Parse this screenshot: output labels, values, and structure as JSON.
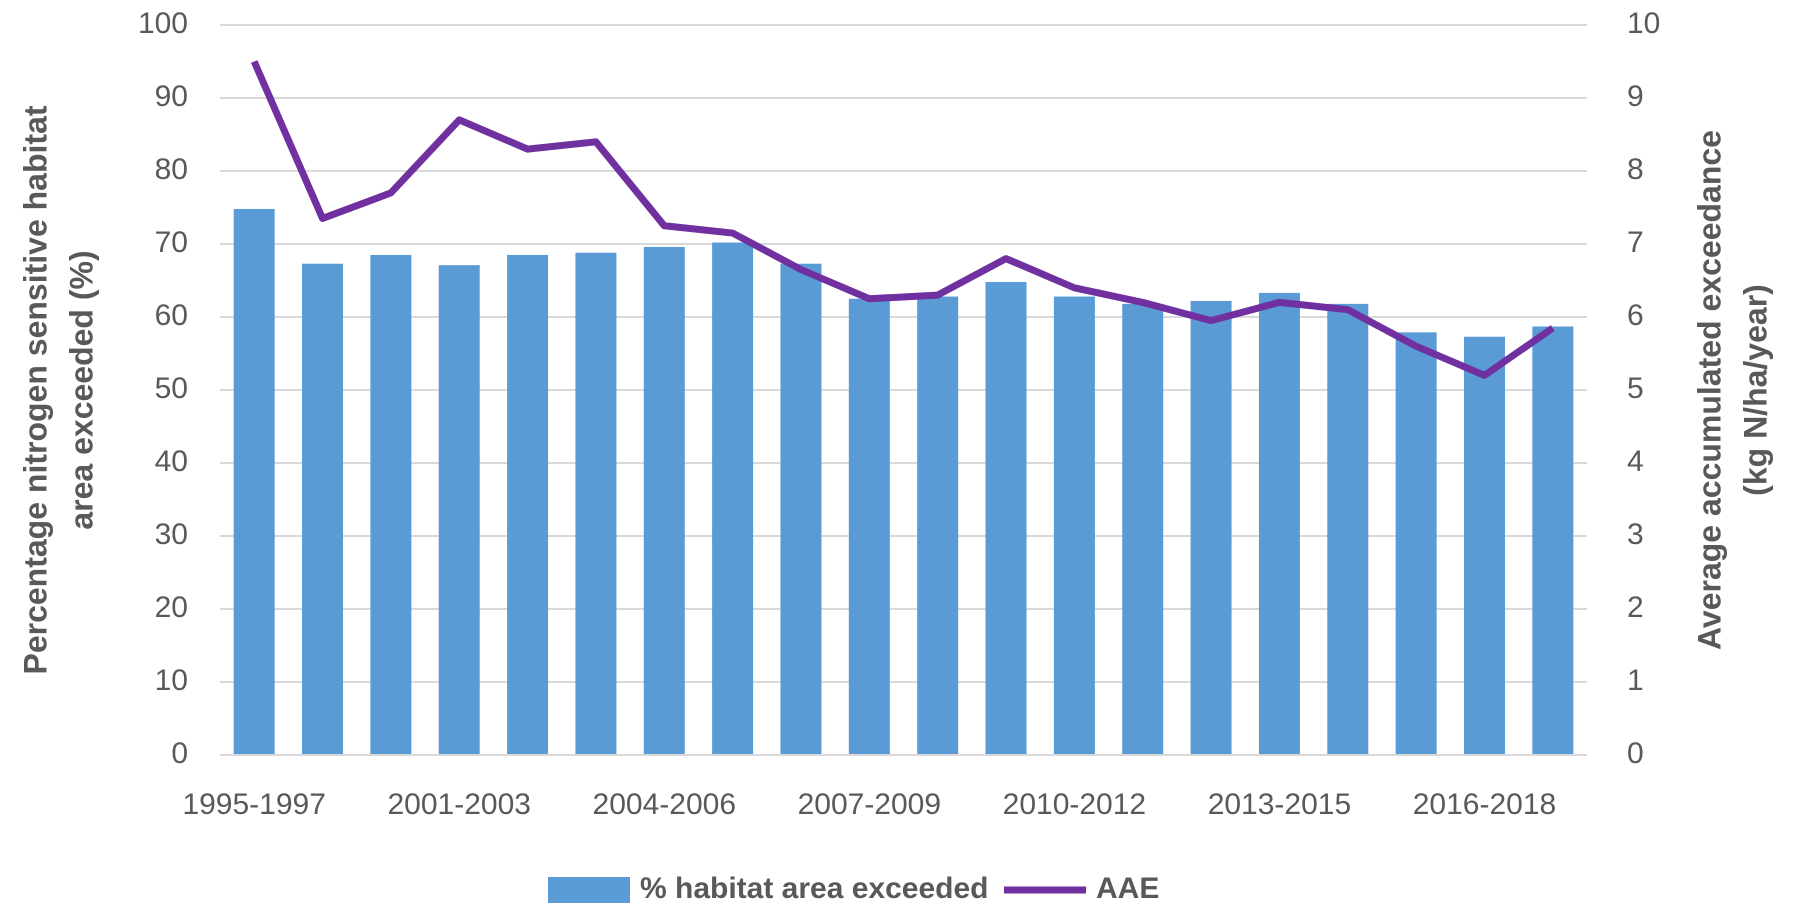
{
  "chart_data": {
    "type": "bar",
    "y_label": [
      "Percentage nitrogen sensitive habitat",
      "area exceeded (%)"
    ],
    "y2_label": [
      "Average accumulated exceedance",
      "(kg N/ha/year)"
    ],
    "categories": [
      "1995-1997",
      null,
      null,
      "2001-2003",
      null,
      null,
      "2004-2006",
      null,
      null,
      "2007-2009",
      null,
      null,
      "2010-2012",
      null,
      null,
      "2013-2015",
      null,
      null,
      "2016-2018",
      null
    ],
    "series": [
      {
        "name": "% habitat area exceeded",
        "type": "bar",
        "color": "#5b9bd5",
        "values": [
          74.8,
          67.3,
          68.5,
          67.1,
          68.5,
          68.8,
          69.6,
          70.2,
          67.3,
          62.5,
          62.8,
          64.8,
          62.8,
          61.8,
          62.2,
          63.3,
          61.8,
          57.9,
          57.3,
          58.7
        ]
      },
      {
        "name": "AAE",
        "type": "line",
        "axis": "y2",
        "color": "#7030a0",
        "values": [
          9.5,
          7.35,
          7.7,
          8.7,
          8.3,
          8.4,
          7.25,
          7.15,
          6.65,
          6.25,
          6.3,
          6.8,
          6.4,
          6.2,
          5.95,
          6.2,
          6.1,
          5.6,
          5.2,
          5.85
        ]
      }
    ],
    "ylim": [
      0,
      100
    ],
    "yticks": [
      0,
      10,
      20,
      30,
      40,
      50,
      60,
      70,
      80,
      90,
      100
    ],
    "y2lim": [
      0,
      10
    ],
    "y2ticks": [
      0,
      1,
      2,
      3,
      4,
      5,
      6,
      7,
      8,
      9,
      10
    ],
    "grid": true,
    "legend": "bottom"
  }
}
